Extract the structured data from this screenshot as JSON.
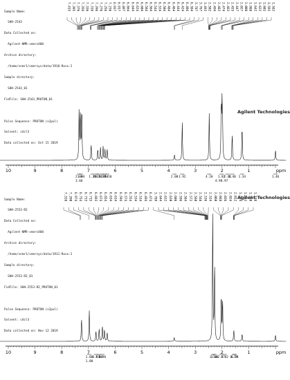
{
  "spectra": [
    {
      "brand": "Agilent Technologies",
      "metadata": [
        "Sample Name:",
        "  SHH-2543",
        "Data Collected on:",
        "  Agilent-NMR-vnmrs400",
        "Archive directory:",
        "  /home/vnmr1/vnmrsys/data/1910-Roco-2",
        "Sample directory:",
        "  SHH-2543_01",
        "FidFile: SHH-2543_PROTON_01",
        "",
        "Pulse Sequence: PROTON (s2pul)",
        "Solvent: cdcl3",
        "Data collected on: Oct 15 2019"
      ],
      "peak_labels": [
        "7.415",
        "7.395",
        "7.376",
        "7.356",
        "7.336",
        "7.316",
        "7.296",
        "7.276",
        "7.256",
        "7.236",
        "6.937",
        "6.917",
        "6.897",
        "6.664",
        "6.644",
        "6.624",
        "6.604",
        "6.584",
        "6.564",
        "6.544",
        "6.524",
        "6.504",
        "6.484",
        "6.464",
        "6.444",
        "6.424",
        "6.404",
        "6.384",
        "3.787",
        "3.767",
        "3.492",
        "2.502",
        "2.494",
        "2.482",
        "2.474",
        "2.463",
        "2.455",
        "2.447",
        "2.027",
        "2.008",
        "1.988",
        "1.642",
        "1.622",
        "1.602",
        "1.592",
        "1.582"
      ],
      "chart_data": {
        "type": "line",
        "title": "",
        "xlabel": "ppm",
        "ylabel": "",
        "xlim": [
          10,
          0
        ],
        "x_ticks": [
          "10",
          "9",
          "8",
          "7",
          "6",
          "5",
          "4",
          "3",
          "2",
          "1",
          "ppm"
        ],
        "series": [
          {
            "peaks": [
              {
                "x": 7.35,
                "y": 0.42
              },
              {
                "x": 7.3,
                "y": 0.4
              },
              {
                "x": 7.25,
                "y": 0.45
              },
              {
                "x": 6.9,
                "y": 0.14
              },
              {
                "x": 6.65,
                "y": 0.1
              },
              {
                "x": 6.55,
                "y": 0.11
              },
              {
                "x": 6.45,
                "y": 0.12
              },
              {
                "x": 6.38,
                "y": 0.09
              },
              {
                "x": 6.3,
                "y": 0.1
              },
              {
                "x": 3.78,
                "y": 0.05
              },
              {
                "x": 3.49,
                "y": 0.33
              },
              {
                "x": 2.48,
                "y": 0.4
              },
              {
                "x": 2.03,
                "y": 0.47
              },
              {
                "x": 2.0,
                "y": 0.44
              },
              {
                "x": 1.98,
                "y": 0.25
              },
              {
                "x": 1.62,
                "y": 0.23
              },
              {
                "x": 1.25,
                "y": 0.3
              },
              {
                "x": 0.0,
                "y": 0.09
              }
            ]
          }
        ],
        "integrals": [
          {
            "x": 7.35,
            "labels": [
              "2.06",
              "3.66"
            ]
          },
          {
            "x": 7.28,
            "labels": [
              "1.04"
            ]
          },
          {
            "x": 6.85,
            "labels": [
              "1.39"
            ]
          },
          {
            "x": 6.7,
            "labels": [
              "2.32"
            ]
          },
          {
            "x": 6.62,
            "labels": [
              "0.56"
            ]
          },
          {
            "x": 6.48,
            "labels": [
              "1.18"
            ]
          },
          {
            "x": 6.4,
            "labels": [
              "2.58"
            ]
          },
          {
            "x": 6.3,
            "labels": [
              "33.10"
            ]
          },
          {
            "x": 3.78,
            "labels": [
              "2.00"
            ]
          },
          {
            "x": 3.49,
            "labels": [
              "1.92"
            ]
          },
          {
            "x": 2.48,
            "labels": [
              "4.10"
            ]
          },
          {
            "x": 2.02,
            "labels": [
              "1.82",
              "4.98.97"
            ]
          },
          {
            "x": 1.8,
            "labels": [
              "2.44"
            ]
          },
          {
            "x": 1.62,
            "labels": [
              "1.40"
            ]
          },
          {
            "x": 1.25,
            "labels": [
              "1.34"
            ]
          },
          {
            "x": 0.0,
            "labels": [
              "1.46"
            ]
          }
        ]
      }
    },
    {
      "brand": "Agilent Technologies",
      "metadata": [
        "Sample Name:",
        "  SHH-2553-R2",
        "Data Collected on:",
        "  Agilent-NMR-vnmrs400",
        "Archive directory:",
        "  /home/vnmr1/vnmrsys/data/1911-Roco-2",
        "Sample directory:",
        "  SHH-2553-R2_01",
        "FidFile: SHH-2553-R2_PROTON_01",
        "",
        "Pulse Sequence: PROTON (s2pul)",
        "Solvent: cdcl3",
        "Data collected on: Nov 12 2019"
      ],
      "peak_labels": [
        "7.328",
        "7.290",
        "6.974",
        "6.754",
        "6.733",
        "6.715",
        "6.693",
        "6.674",
        "6.654",
        "6.634",
        "6.614",
        "6.594",
        "6.574",
        "6.554",
        "6.534",
        "6.514",
        "6.494",
        "6.474",
        "3.789",
        "2.644",
        "2.632",
        "2.620",
        "2.608",
        "2.596",
        "2.584",
        "2.572",
        "2.560",
        "2.548",
        "2.536",
        "2.524",
        "2.060",
        "2.048",
        "2.036",
        "2.024",
        "2.012",
        "1.574",
        "1.562",
        "1.550",
        "1.538"
      ],
      "chart_data": {
        "type": "line",
        "title": "",
        "xlabel": "ppm",
        "ylabel": "",
        "xlim": [
          10,
          0
        ],
        "x_ticks": [
          "10",
          "9",
          "8",
          "7",
          "6",
          "5",
          "4",
          "3",
          "2",
          "1",
          "ppm"
        ],
        "series": [
          {
            "peaks": [
              {
                "x": 7.26,
                "y": 0.18
              },
              {
                "x": 6.97,
                "y": 0.24
              },
              {
                "x": 6.72,
                "y": 0.08
              },
              {
                "x": 6.6,
                "y": 0.1
              },
              {
                "x": 6.48,
                "y": 0.12
              },
              {
                "x": 6.4,
                "y": 0.09
              },
              {
                "x": 6.3,
                "y": 0.07
              },
              {
                "x": 3.79,
                "y": 0.03
              },
              {
                "x": 2.35,
                "y": 0.98
              },
              {
                "x": 2.28,
                "y": 0.6
              },
              {
                "x": 2.03,
                "y": 0.37
              },
              {
                "x": 1.98,
                "y": 0.32
              },
              {
                "x": 1.56,
                "y": 0.09
              },
              {
                "x": 1.25,
                "y": 0.06
              },
              {
                "x": 0.0,
                "y": 0.05
              }
            ]
          }
        ],
        "integrals": [
          {
            "x": 6.97,
            "labels": [
              "1.00",
              "1.00"
            ]
          },
          {
            "x": 6.72,
            "labels": [
              "0.97"
            ]
          },
          {
            "x": 6.6,
            "labels": [
              "1.00"
            ]
          },
          {
            "x": 6.48,
            "labels": [
              "0.96"
            ]
          },
          {
            "x": 2.33,
            "labels": [
              "1.54"
            ]
          },
          {
            "x": 2.28,
            "labels": [
              "3.00"
            ]
          },
          {
            "x": 2.03,
            "labels": [
              "2.67"
            ]
          },
          {
            "x": 1.9,
            "labels": [
              "2.82"
            ]
          },
          {
            "x": 1.56,
            "labels": [
              "0.79"
            ]
          },
          {
            "x": 1.52,
            "labels": [
              "0.24"
            ]
          }
        ]
      }
    }
  ]
}
